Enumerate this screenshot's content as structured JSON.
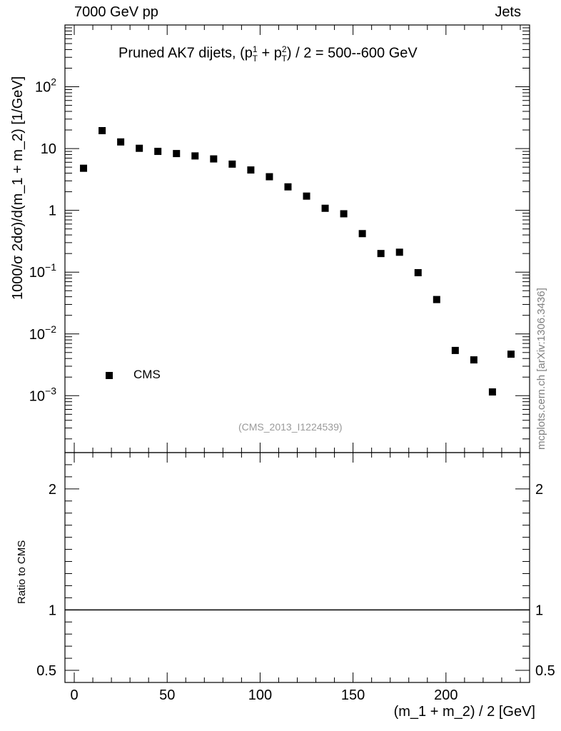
{
  "header": {
    "left": "7000 GeV pp",
    "right": "Jets"
  },
  "plot_title": {
    "prefix": "Pruned AK7 dijets, (p",
    "pt1_sup": "1",
    "pt1_sub": "T",
    "plus": " + p",
    "pt2_sup": "2",
    "pt2_sub": "T",
    "suffix": ") / 2 = 500--600 GeV"
  },
  "watermark": "mcplots.cern.ch [arXiv:1306.3436]",
  "analysis_id": "(CMS_2013_I1224539)",
  "legend": {
    "label": "CMS"
  },
  "chart_data": [
    {
      "type": "scatter",
      "xlabel": "(m_1 + m_2) / 2 [GeV]",
      "ylabel": "1000/σ   2dσ)/d(m_1 + m_2) [1/GeV]",
      "yscale": "log",
      "xlim": [
        -5,
        245
      ],
      "ylim": [
        0.00012,
        1000
      ],
      "x_ticks": [
        0,
        50,
        100,
        150,
        200
      ],
      "y_ticks": [
        {
          "v": 0.001,
          "base": "10",
          "exp": "−3"
        },
        {
          "v": 0.01,
          "base": "10",
          "exp": "−2"
        },
        {
          "v": 0.1,
          "base": "10",
          "exp": "−1"
        },
        {
          "v": 1,
          "base": "1",
          "exp": ""
        },
        {
          "v": 10,
          "base": "10",
          "exp": ""
        },
        {
          "v": 100,
          "base": "10",
          "exp": "2"
        }
      ],
      "series": [
        {
          "name": "CMS",
          "marker": "square",
          "color": "#000000",
          "x": [
            5,
            15,
            25,
            35,
            45,
            55,
            65,
            75,
            85,
            95,
            105,
            115,
            125,
            135,
            145,
            155,
            165,
            175,
            185,
            195,
            205,
            215,
            225,
            235
          ],
          "y": [
            4.8,
            19.5,
            12.8,
            10.1,
            9.0,
            8.3,
            7.6,
            6.8,
            5.6,
            4.5,
            3.5,
            2.4,
            1.7,
            1.08,
            0.88,
            0.42,
            0.2,
            0.21,
            0.098,
            0.036,
            0.0054,
            0.0038,
            0.00115,
            0.0047
          ]
        }
      ]
    },
    {
      "type": "line",
      "ylabel": "Ratio to CMS",
      "xlim": [
        -5,
        245
      ],
      "ylim": [
        0.4,
        2.3
      ],
      "y_ticks": [
        {
          "v": 0.5,
          "label": "0.5"
        },
        {
          "v": 1,
          "label": "1"
        },
        {
          "v": 2,
          "label": "2"
        }
      ],
      "series": [
        {
          "x": [
            -5,
            245
          ],
          "y": [
            1,
            1
          ],
          "color": "#000000"
        }
      ]
    }
  ]
}
